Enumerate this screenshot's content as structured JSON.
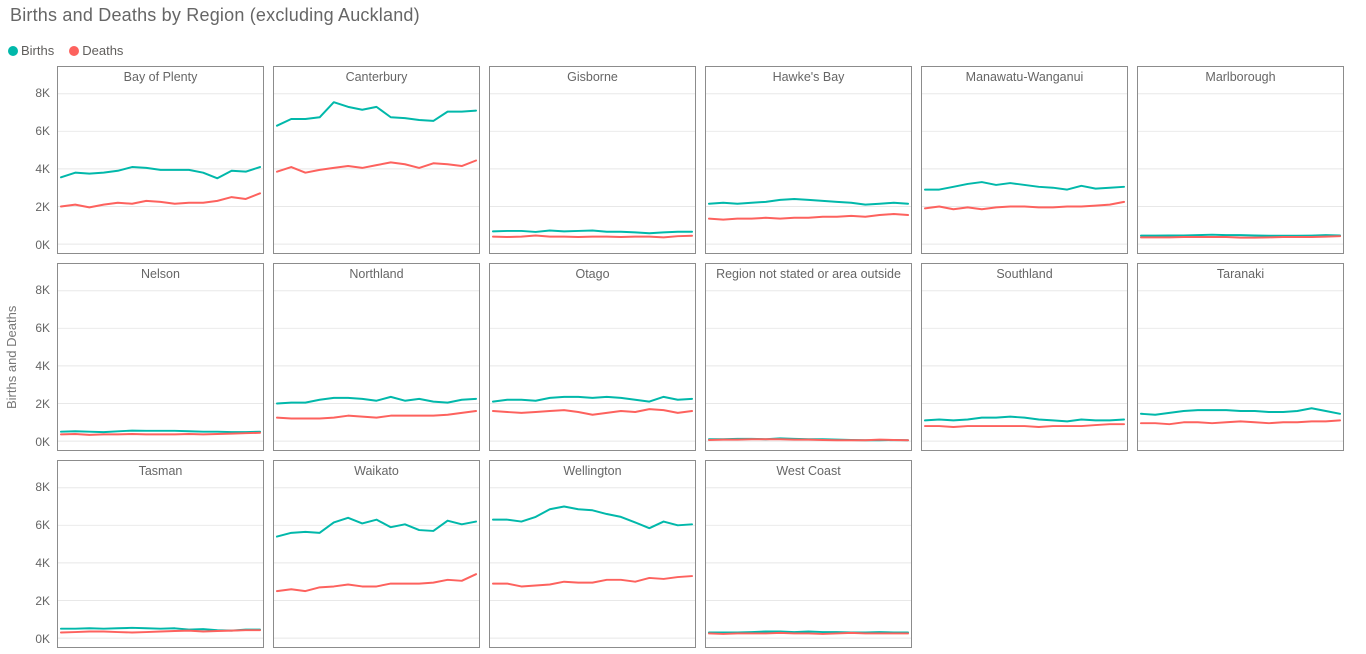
{
  "title": "Births and Deaths by Region (excluding Auckland)",
  "legend": {
    "items": [
      {
        "label": "Births",
        "color": "#01B8AA"
      },
      {
        "label": "Deaths",
        "color": "#FD625E"
      }
    ]
  },
  "y_axis": {
    "title": "Births and Deaths",
    "ticks": [
      "8K",
      "6K",
      "4K",
      "2K",
      "0K"
    ]
  },
  "chart_data": {
    "type": "line",
    "title": "Births and Deaths by Region (excluding Auckland)",
    "ylabel": "Births and Deaths",
    "units": "thousands",
    "ylim": [
      0,
      8
    ],
    "y_tick_labels": [
      "0K",
      "2K",
      "4K",
      "6K",
      "8K"
    ],
    "x_labels_visible": false,
    "n_points": 15,
    "grid": true,
    "legend_position": "top-left",
    "series_names": [
      "Births",
      "Deaths"
    ],
    "colors": {
      "Births": "#01B8AA",
      "Deaths": "#FD625E"
    },
    "multiples": [
      {
        "region": "Bay of Plenty",
        "births": [
          3.55,
          3.8,
          3.75,
          3.8,
          3.9,
          4.1,
          4.05,
          3.95,
          3.95,
          3.95,
          3.8,
          3.5,
          3.9,
          3.85,
          4.1
        ],
        "deaths": [
          2.0,
          2.1,
          1.95,
          2.1,
          2.2,
          2.15,
          2.3,
          2.25,
          2.15,
          2.2,
          2.2,
          2.3,
          2.5,
          2.4,
          2.7
        ]
      },
      {
        "region": "Canterbury",
        "births": [
          6.3,
          6.65,
          6.65,
          6.75,
          7.55,
          7.3,
          7.15,
          7.3,
          6.75,
          6.7,
          6.6,
          6.55,
          7.05,
          7.05,
          7.1
        ],
        "deaths": [
          3.85,
          4.1,
          3.8,
          3.95,
          4.05,
          4.15,
          4.05,
          4.2,
          4.35,
          4.25,
          4.05,
          4.3,
          4.25,
          4.15,
          4.45
        ]
      },
      {
        "region": "Gisborne",
        "births": [
          0.68,
          0.7,
          0.7,
          0.65,
          0.72,
          0.68,
          0.7,
          0.72,
          0.66,
          0.66,
          0.62,
          0.58,
          0.62,
          0.66,
          0.66
        ],
        "deaths": [
          0.4,
          0.38,
          0.4,
          0.46,
          0.4,
          0.4,
          0.38,
          0.4,
          0.4,
          0.38,
          0.4,
          0.4,
          0.36,
          0.42,
          0.44
        ]
      },
      {
        "region": "Hawke's Bay",
        "births": [
          2.15,
          2.2,
          2.15,
          2.2,
          2.25,
          2.35,
          2.4,
          2.35,
          2.3,
          2.25,
          2.2,
          2.1,
          2.15,
          2.2,
          2.15
        ],
        "deaths": [
          1.35,
          1.3,
          1.35,
          1.35,
          1.4,
          1.35,
          1.4,
          1.4,
          1.45,
          1.45,
          1.5,
          1.45,
          1.55,
          1.6,
          1.55
        ]
      },
      {
        "region": "Manawatu-Wanganui",
        "births": [
          2.9,
          2.9,
          3.05,
          3.2,
          3.3,
          3.15,
          3.25,
          3.15,
          3.05,
          3.0,
          2.9,
          3.1,
          2.95,
          3.0,
          3.05
        ],
        "deaths": [
          1.9,
          2.0,
          1.85,
          1.95,
          1.85,
          1.95,
          2.0,
          2.0,
          1.95,
          1.95,
          2.0,
          2.0,
          2.05,
          2.1,
          2.25
        ]
      },
      {
        "region": "Marlborough",
        "births": [
          0.45,
          0.45,
          0.46,
          0.46,
          0.48,
          0.5,
          0.48,
          0.48,
          0.46,
          0.44,
          0.44,
          0.44,
          0.45,
          0.48,
          0.46
        ],
        "deaths": [
          0.36,
          0.36,
          0.36,
          0.38,
          0.38,
          0.38,
          0.38,
          0.34,
          0.34,
          0.36,
          0.38,
          0.38,
          0.38,
          0.4,
          0.42
        ]
      },
      {
        "region": "Nelson",
        "births": [
          0.5,
          0.52,
          0.5,
          0.48,
          0.52,
          0.56,
          0.55,
          0.55,
          0.55,
          0.52,
          0.5,
          0.5,
          0.48,
          0.48,
          0.5
        ],
        "deaths": [
          0.36,
          0.38,
          0.33,
          0.36,
          0.36,
          0.38,
          0.36,
          0.36,
          0.36,
          0.38,
          0.36,
          0.38,
          0.4,
          0.42,
          0.44
        ]
      },
      {
        "region": "Northland",
        "births": [
          2.0,
          2.05,
          2.05,
          2.2,
          2.3,
          2.3,
          2.25,
          2.15,
          2.35,
          2.15,
          2.25,
          2.1,
          2.05,
          2.2,
          2.25
        ],
        "deaths": [
          1.25,
          1.2,
          1.2,
          1.2,
          1.25,
          1.35,
          1.3,
          1.25,
          1.35,
          1.35,
          1.35,
          1.35,
          1.4,
          1.5,
          1.6
        ]
      },
      {
        "region": "Otago",
        "births": [
          2.1,
          2.2,
          2.2,
          2.15,
          2.3,
          2.35,
          2.35,
          2.3,
          2.35,
          2.3,
          2.2,
          2.1,
          2.35,
          2.2,
          2.25
        ],
        "deaths": [
          1.6,
          1.55,
          1.5,
          1.55,
          1.6,
          1.65,
          1.55,
          1.4,
          1.5,
          1.6,
          1.55,
          1.7,
          1.65,
          1.5,
          1.6
        ]
      },
      {
        "region": "Region not stated or area outside",
        "births": [
          0.1,
          0.1,
          0.12,
          0.12,
          0.1,
          0.14,
          0.12,
          0.1,
          0.1,
          0.08,
          0.06,
          0.05,
          0.05,
          0.06,
          0.05
        ],
        "deaths": [
          0.06,
          0.08,
          0.08,
          0.1,
          0.1,
          0.1,
          0.08,
          0.08,
          0.06,
          0.05,
          0.05,
          0.05,
          0.08,
          0.06,
          0.05
        ]
      },
      {
        "region": "Southland",
        "births": [
          1.1,
          1.15,
          1.1,
          1.15,
          1.25,
          1.25,
          1.3,
          1.25,
          1.15,
          1.1,
          1.05,
          1.15,
          1.1,
          1.1,
          1.15
        ],
        "deaths": [
          0.8,
          0.8,
          0.75,
          0.8,
          0.8,
          0.8,
          0.8,
          0.8,
          0.75,
          0.8,
          0.8,
          0.8,
          0.85,
          0.9,
          0.9
        ]
      },
      {
        "region": "Taranaki",
        "births": [
          1.45,
          1.4,
          1.5,
          1.6,
          1.65,
          1.65,
          1.65,
          1.6,
          1.6,
          1.55,
          1.55,
          1.6,
          1.75,
          1.6,
          1.45
        ],
        "deaths": [
          0.95,
          0.95,
          0.9,
          1.0,
          1.0,
          0.95,
          1.0,
          1.05,
          1.0,
          0.95,
          1.0,
          1.0,
          1.05,
          1.05,
          1.1
        ]
      },
      {
        "region": "Tasman",
        "births": [
          0.5,
          0.5,
          0.52,
          0.5,
          0.52,
          0.55,
          0.52,
          0.5,
          0.52,
          0.45,
          0.48,
          0.42,
          0.4,
          0.45,
          0.45
        ],
        "deaths": [
          0.3,
          0.32,
          0.35,
          0.35,
          0.32,
          0.3,
          0.32,
          0.35,
          0.38,
          0.4,
          0.35,
          0.38,
          0.4,
          0.42,
          0.42
        ]
      },
      {
        "region": "Waikato",
        "births": [
          5.4,
          5.6,
          5.65,
          5.6,
          6.15,
          6.4,
          6.1,
          6.3,
          5.9,
          6.05,
          5.75,
          5.7,
          6.25,
          6.05,
          6.2
        ],
        "deaths": [
          2.5,
          2.6,
          2.5,
          2.7,
          2.75,
          2.85,
          2.75,
          2.75,
          2.9,
          2.9,
          2.9,
          2.95,
          3.1,
          3.05,
          3.4
        ]
      },
      {
        "region": "Wellington",
        "births": [
          6.3,
          6.3,
          6.2,
          6.45,
          6.85,
          7.0,
          6.85,
          6.8,
          6.6,
          6.45,
          6.15,
          5.85,
          6.2,
          6.0,
          6.05
        ],
        "deaths": [
          2.9,
          2.9,
          2.75,
          2.8,
          2.85,
          3.0,
          2.95,
          2.95,
          3.1,
          3.1,
          3.0,
          3.2,
          3.15,
          3.25,
          3.3
        ]
      },
      {
        "region": "West Coast",
        "births": [
          0.3,
          0.3,
          0.3,
          0.32,
          0.35,
          0.35,
          0.32,
          0.35,
          0.32,
          0.32,
          0.3,
          0.3,
          0.32,
          0.3,
          0.3
        ],
        "deaths": [
          0.25,
          0.22,
          0.25,
          0.25,
          0.25,
          0.28,
          0.25,
          0.25,
          0.22,
          0.25,
          0.28,
          0.25,
          0.25,
          0.25,
          0.25
        ]
      }
    ]
  }
}
